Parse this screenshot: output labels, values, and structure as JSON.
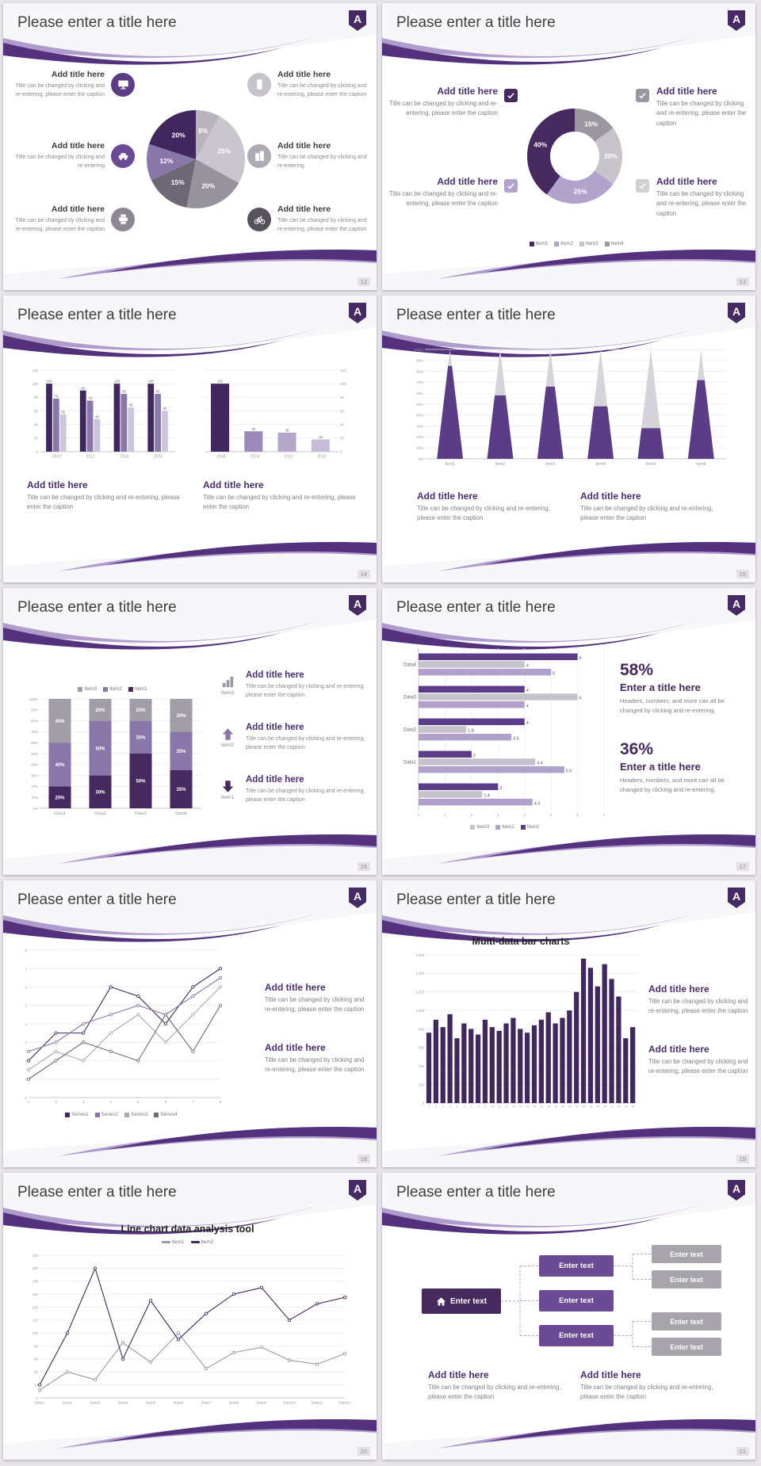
{
  "common": {
    "slide_title": "Please enter a title here",
    "add_title": "Add title here",
    "caption": "Title can be changed by clicking and re-entering, please enter the caption",
    "caption_short": "Title can be changed by clicking and re-entering",
    "logo_letter": "A"
  },
  "slides": {
    "s12": {
      "page": "12"
    },
    "s13": {
      "page": "13"
    },
    "s14": {
      "page": "14"
    },
    "s15": {
      "page": "15"
    },
    "s16": {
      "page": "16"
    },
    "s17": {
      "page": "17",
      "stat1": {
        "pct": "58%",
        "title": "Enter a title here",
        "caption": "Headers, numbers, and more can all be changed by clicking and re-entering."
      },
      "stat2": {
        "pct": "36%",
        "title": "Enter a title here",
        "caption": "Headers, numbers, and more can all be changed by clicking and re-entering."
      }
    },
    "s18": {
      "page": "18"
    },
    "s19": {
      "page": "19",
      "chart_title": "Multi-data bar charts"
    },
    "s20": {
      "page": "20",
      "chart_title": "Line chart data analysis tool"
    },
    "s21": {
      "page": "21",
      "box_label": "Enter text"
    }
  },
  "icons": {
    "s12": [
      "monitor",
      "smartphone",
      "car",
      "building",
      "printer",
      "bicycle"
    ],
    "s13": [
      "checkbox-check"
    ],
    "s16": [
      "bar-chart",
      "arrow-up",
      "arrow-down"
    ],
    "s21": [
      "home"
    ]
  },
  "colors": {
    "dark_purple": "#40285e",
    "purple": "#5b3c87",
    "mid_purple": "#8a77a9",
    "pale_purple": "#b2a3cd",
    "gray": "#9b97a1",
    "light_gray": "#c9c6cd"
  },
  "chart_data": [
    {
      "id": "pie12",
      "type": "pie",
      "R": 62,
      "labelSize": 8.5,
      "values": [
        8,
        25,
        20,
        15,
        12,
        20
      ],
      "labels": [
        "8%",
        "25%",
        "20%",
        "15%",
        "12%",
        "20%"
      ],
      "colors": [
        "#b7b4bb",
        "#c9c6cd",
        "#97939c",
        "#6e6876",
        "#8a77a9",
        "#40285e"
      ]
    },
    {
      "id": "donut13",
      "type": "pie",
      "R": 60,
      "r": 31,
      "labelSize": 8.5,
      "values": [
        15,
        20,
        25,
        40
      ],
      "labels": [
        "15%",
        "20%",
        "25%",
        "40%"
      ],
      "colors": [
        "#9b97a1",
        "#c7c4cb",
        "#b2a3cd",
        "#46295f"
      ],
      "legend": [
        {
          "label": "Item1",
          "color": "#46295f"
        },
        {
          "label": "Item2",
          "color": "#b2a3cd"
        },
        {
          "label": "Item3",
          "color": "#c7c4cb"
        },
        {
          "label": "Item4",
          "color": "#9b97a1"
        }
      ]
    },
    {
      "id": "bars14a",
      "type": "bar",
      "categories": [
        "2010",
        "2012",
        "2014",
        "2016"
      ],
      "series": [
        {
          "name": "Series1",
          "color": "#40285e",
          "values": [
            100,
            90,
            100,
            100
          ]
        },
        {
          "name": "Series2",
          "color": "#8a77a9",
          "values": [
            78,
            75,
            85,
            85
          ]
        },
        {
          "name": "Series3",
          "color": "#cdc5dc",
          "values": [
            55,
            48,
            65,
            60
          ]
        }
      ],
      "ylim": [
        0,
        120
      ],
      "ystep": 20,
      "showValues": true,
      "margin": {
        "l": 20,
        "r": 4,
        "t": 10,
        "b": 12
      }
    },
    {
      "id": "bars14b",
      "type": "bar",
      "categories": [
        "2016",
        "2014",
        "2012",
        "2010"
      ],
      "series": [
        {
          "name": "Series1",
          "color": "#9c89ba",
          "colors": [
            "#40285e",
            "#9c89ba",
            "#b3a5cb",
            "#c6bcd8"
          ],
          "values": [
            100,
            30,
            28,
            18
          ]
        }
      ],
      "ylim": [
        0,
        120
      ],
      "ystep": 20,
      "yside": "right",
      "showValues": true,
      "margin": {
        "l": 6,
        "r": 20,
        "t": 10,
        "b": 12
      }
    },
    {
      "id": "cones15",
      "type": "cone",
      "categories": [
        "Item1",
        "Item2",
        "Item3",
        "Item4",
        "Item5",
        "Item6"
      ],
      "values": [
        85,
        58,
        66,
        48,
        28,
        72
      ],
      "coneColor": "#5b3c87",
      "topColor": "#d6d4da",
      "ylim": [
        0,
        100
      ],
      "ystep": 10,
      "yfmt": "pct",
      "margin": {
        "l": 30,
        "r": 10,
        "t": 8,
        "b": 14
      }
    },
    {
      "id": "stack16",
      "type": "stack",
      "categories": [
        "Data1",
        "Data2",
        "Data3",
        "Data4"
      ],
      "series": [
        {
          "name": "Item1",
          "color": "#46295f",
          "values": [
            20,
            30,
            50,
            35
          ]
        },
        {
          "name": "Item2",
          "color": "#8a77a9",
          "values": [
            40,
            50,
            30,
            35
          ]
        },
        {
          "name": "Item3",
          "color": "#a09da6",
          "values": [
            40,
            20,
            20,
            30
          ]
        }
      ],
      "ylim": [
        0,
        100
      ],
      "ystep": 10,
      "yfmt": "pct",
      "margin": {
        "l": 28,
        "r": 8,
        "t": 6,
        "b": 16
      },
      "legend": [
        {
          "label": "Item3",
          "color": "#a09da6"
        },
        {
          "label": "Item2",
          "color": "#8a77a9"
        },
        {
          "label": "Item1",
          "color": "#46295f"
        }
      ]
    },
    {
      "id": "hbar17",
      "type": "hbar",
      "xlim": [
        0,
        7
      ],
      "xstep": 1,
      "groups": [
        {
          "label": "Data4",
          "values": [
            6,
            4,
            5
          ]
        },
        {
          "label": "Data3",
          "values": [
            4,
            6,
            4
          ]
        },
        {
          "label": "Data2",
          "values": [
            4,
            1.8,
            3.5
          ]
        },
        {
          "label": "Data1",
          "values": [
            2,
            4.4,
            5.5
          ]
        },
        {
          "label": "",
          "values": [
            3,
            2.4,
            4.3
          ]
        }
      ],
      "colors": [
        "#5b3c87",
        "#c6c2cc",
        "#b1a0cc"
      ],
      "margin": {
        "l": 36,
        "r": 20,
        "t": 6,
        "b": 14
      },
      "legend": [
        {
          "label": "Item3",
          "color": "#c6c2cc"
        },
        {
          "label": "Item2",
          "color": "#b1a0cc"
        },
        {
          "label": "Item1",
          "color": "#5b3c87"
        }
      ]
    },
    {
      "id": "line18",
      "type": "line",
      "xlabels": [
        "1",
        "2",
        "3",
        "4",
        "5",
        "6",
        "7",
        "8"
      ],
      "ylim": [
        0,
        8
      ],
      "ystep": 1,
      "margin": {
        "l": 18,
        "r": 10,
        "t": 8,
        "b": 16
      },
      "series": [
        {
          "name": "Series1",
          "color": "#40285e",
          "values": [
            2,
            3.5,
            3.5,
            6,
            5.5,
            4,
            6,
            7
          ]
        },
        {
          "name": "Series2",
          "color": "#8a77a9",
          "values": [
            2.5,
            3,
            4,
            4.5,
            5,
            4.5,
            5.5,
            6.5
          ]
        },
        {
          "name": "Series3",
          "color": "#aba7b3",
          "values": [
            1.5,
            2.5,
            2,
            3.5,
            4.5,
            3,
            4.5,
            6
          ]
        },
        {
          "name": "Series4",
          "color": "#6e6a76",
          "values": [
            1,
            2,
            3,
            2.5,
            2,
            4.5,
            2.5,
            5
          ]
        }
      ]
    },
    {
      "id": "bars19",
      "type": "bar",
      "title": "Multi-data bar charts",
      "categories": [
        "1",
        "2",
        "3",
        "4",
        "5",
        "6",
        "7",
        "8",
        "9",
        "10",
        "11",
        "12",
        "13",
        "14",
        "15",
        "16",
        "17",
        "18",
        "19",
        "20",
        "21",
        "22",
        "23",
        "24",
        "25",
        "26",
        "27",
        "28",
        "29",
        "30"
      ],
      "series": [
        {
          "name": "Data",
          "color": "#40285e",
          "values": [
            760,
            900,
            820,
            960,
            700,
            860,
            800,
            740,
            900,
            820,
            780,
            860,
            920,
            800,
            760,
            840,
            900,
            980,
            860,
            920,
            1000,
            1200,
            1560,
            1460,
            1260,
            1500,
            1340,
            1150,
            700,
            820
          ]
        }
      ],
      "ylim": [
        0,
        1600
      ],
      "ystep": 200,
      "yfmt": "comma",
      "fill": 0.8,
      "xlabSize": 3.2,
      "tickSize": 4.2,
      "margin": {
        "l": 30,
        "r": 4,
        "t": 6,
        "b": 12
      }
    },
    {
      "id": "line20",
      "type": "line",
      "title": "Line chart data analysis tool",
      "xlabels": [
        "Data1",
        "Data2",
        "Data3",
        "Data4",
        "Data5",
        "Data6",
        "Data7",
        "Data8",
        "Data9",
        "Data10",
        "Data11",
        "Data12"
      ],
      "ylim": [
        0,
        220
      ],
      "ystep": 20,
      "xlabSize": 4.8,
      "margin": {
        "l": 26,
        "r": 14,
        "t": 6,
        "b": 14
      },
      "series": [
        {
          "name": "Item1",
          "color": "#9b97a3",
          "values": [
            12,
            40,
            28,
            85,
            55,
            100,
            45,
            70,
            78,
            58,
            52,
            68
          ]
        },
        {
          "name": "Item2",
          "color": "#40285e",
          "values": [
            20,
            100,
            200,
            60,
            150,
            90,
            130,
            160,
            170,
            120,
            145,
            155
          ]
        }
      ],
      "legend": [
        {
          "label": "Item1",
          "color": "#9b97a3",
          "marker": "line"
        },
        {
          "label": "Item2",
          "color": "#40285e",
          "marker": "line"
        }
      ]
    }
  ]
}
